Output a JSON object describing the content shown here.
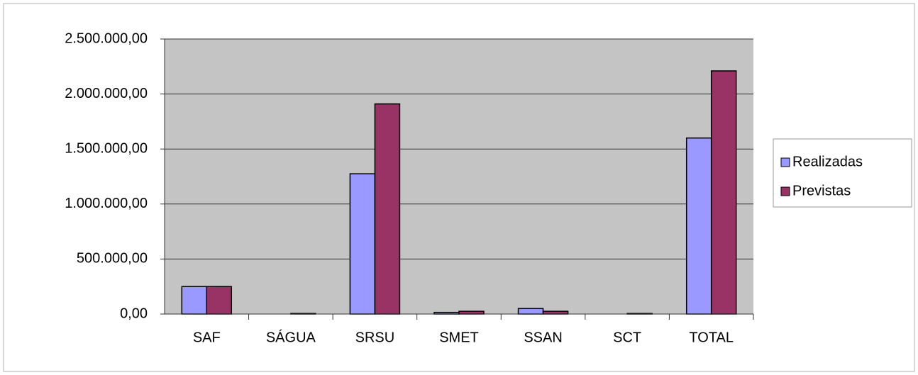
{
  "chart_data": {
    "type": "bar",
    "categories": [
      "SAF",
      "SÁGUA",
      "SRSU",
      "SMET",
      "SSAN",
      "SCT",
      "TOTAL"
    ],
    "series": [
      {
        "name": "Realizadas",
        "color": "#9999ff",
        "values": [
          250000,
          0,
          1275000,
          15000,
          50000,
          0,
          1600000
        ]
      },
      {
        "name": "Previstas",
        "color": "#993366",
        "values": [
          250000,
          5000,
          1910000,
          25000,
          25000,
          5000,
          2210000
        ]
      }
    ],
    "ylim": [
      0,
      2500000
    ],
    "yticks": [
      {
        "value": 0,
        "label": "0,00"
      },
      {
        "value": 500000,
        "label": "500.000,00"
      },
      {
        "value": 1000000,
        "label": "1.000.000,00"
      },
      {
        "value": 1500000,
        "label": "1.500.000,00"
      },
      {
        "value": 2000000,
        "label": "2.000.000,00"
      },
      {
        "value": 2500000,
        "label": "2.500.000,00"
      }
    ],
    "grid": true,
    "legend": "right"
  }
}
